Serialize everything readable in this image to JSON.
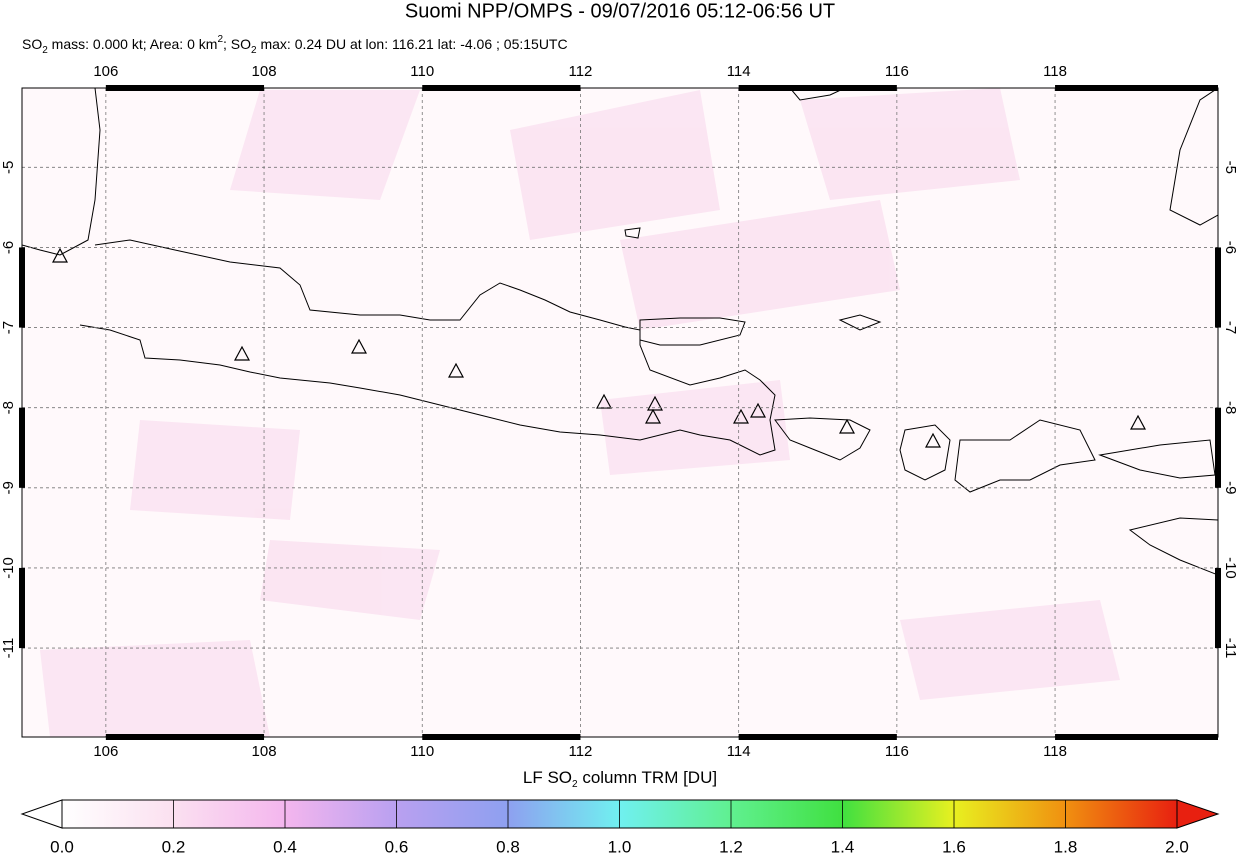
{
  "header": {
    "title": "Suomi NPP/OMPS - 09/07/2016 05:12-06:56 UT",
    "subtitle": [
      "SO",
      "2",
      " mass: 0.000 kt; Area: 0 km",
      "2",
      "; SO",
      "2",
      " max: 0.24 DU at lon: 116.21 lat: -4.06 ; 05:15UTC"
    ]
  },
  "map": {
    "lonlim": [
      104.94,
      120.06
    ],
    "latlim": [
      -12.11,
      -4.01
    ],
    "lon_ticks": [
      106,
      108,
      110,
      112,
      114,
      116,
      118
    ],
    "lat_ticks": [
      -5,
      -6,
      -7,
      -8,
      -9,
      -10,
      -11
    ]
  },
  "colorbar": {
    "label": [
      "LF SO",
      "2",
      " column TRM [DU]"
    ],
    "range": [
      0,
      2
    ],
    "ticks": [
      {
        "value": 0,
        "label": "0.0"
      },
      {
        "value": 0.2,
        "label": "0.2"
      },
      {
        "value": 0.4,
        "label": "0.4"
      },
      {
        "value": 0.6,
        "label": "0.6"
      },
      {
        "value": 0.8,
        "label": "0.8"
      },
      {
        "value": 1,
        "label": "1.0"
      },
      {
        "value": 1.2,
        "label": "1.2"
      },
      {
        "value": 1.4,
        "label": "1.4"
      },
      {
        "value": 1.6,
        "label": "1.6"
      },
      {
        "value": 1.8,
        "label": "1.8"
      },
      {
        "value": 2,
        "label": "2.0"
      }
    ]
  }
}
